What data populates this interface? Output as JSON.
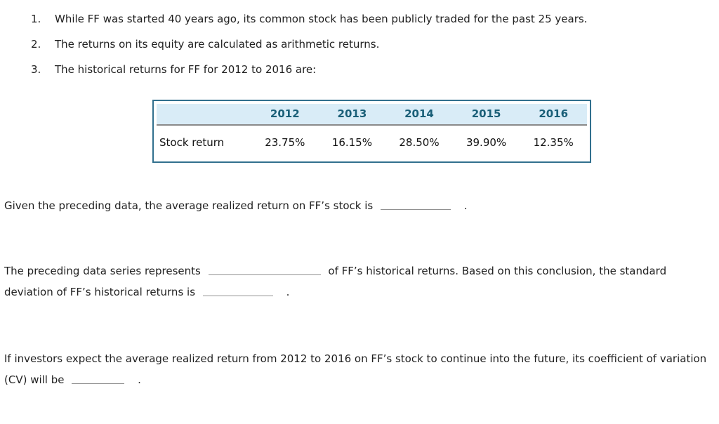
{
  "page": {
    "background": "#ffffff",
    "text_color": "#1f1f1f"
  },
  "list": {
    "items": [
      {
        "number": "1.",
        "text": "While FF was started 40 years ago, its common stock has been publicly traded for the past 25 years."
      },
      {
        "number": "2.",
        "text": "The returns on its equity are calculated as arithmetic returns."
      },
      {
        "number": "3.",
        "text": "The historical returns for FF for 2012 to 2016 are:"
      }
    ]
  },
  "table": {
    "border_color": "#31708e",
    "header_bg": "#d9ecf7",
    "header_text_color": "#1a5f78",
    "divider_color": "#8a8a8a",
    "row_label": "Stock return",
    "years": [
      "2012",
      "2013",
      "2014",
      "2015",
      "2016"
    ],
    "returns": [
      "23.75%",
      "16.15%",
      "28.50%",
      "39.90%",
      "12.35%"
    ]
  },
  "questions": {
    "q1": {
      "before_blank": "Given the preceding data, the average realized return on FF’s stock is",
      "after_blank": "."
    },
    "q2": {
      "part1": "The preceding data series represents",
      "part2": "of FF’s historical returns. Based on this conclusion, the standard deviation of FF’s historical returns is",
      "part3": "."
    },
    "q3": {
      "before_blank": "If investors expect the average realized return from 2012 to 2016 on FF’s stock to continue into the future, its coefficient of variation (CV) will be",
      "after_blank": "."
    }
  },
  "chart_data": {
    "type": "table",
    "title": "Historical returns for FF, 2012 to 2016",
    "categories": [
      "2012",
      "2013",
      "2014",
      "2015",
      "2016"
    ],
    "series": [
      {
        "name": "Stock return",
        "values": [
          23.75,
          16.15,
          28.5,
          39.9,
          12.35
        ],
        "unit": "%"
      }
    ]
  }
}
